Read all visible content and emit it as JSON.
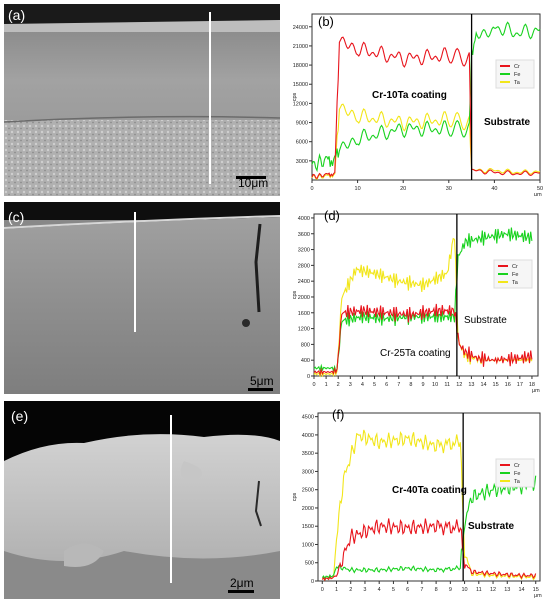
{
  "figure": {
    "panels": [
      {
        "id": "a",
        "label": "(a)",
        "scale_bar": "10μm"
      },
      {
        "id": "b",
        "label": "(b)",
        "coating_label": "Cr-10Ta coating",
        "substrate_label": "Substrate"
      },
      {
        "id": "c",
        "label": "(c)",
        "scale_bar": "5μm"
      },
      {
        "id": "d",
        "label": "(d)",
        "coating_label": "Cr-25Ta coating",
        "substrate_label": "Substrate"
      },
      {
        "id": "e",
        "label": "(e)",
        "scale_bar": "2μm"
      },
      {
        "id": "f",
        "label": "(f)",
        "coating_label": "Cr-40Ta coating",
        "substrate_label": "Substrate"
      }
    ]
  },
  "colors": {
    "Cr": "#e8141c",
    "Fe": "#18d21e",
    "Ta": "#f2e61a",
    "boundary": "#000000"
  },
  "chart_data": [
    {
      "type": "line",
      "panel": "b",
      "ylabel": "cps",
      "xunit": "μm",
      "xlim": [
        0,
        50
      ],
      "ylim": [
        0,
        26000
      ],
      "xticks": [
        0,
        10,
        20,
        30,
        40,
        50
      ],
      "yticks": [
        3000,
        6000,
        9000,
        12000,
        15000,
        18000,
        21000,
        24000
      ],
      "interface_x": 35,
      "legend": [
        "Cr",
        "Fe",
        "Ta"
      ],
      "series": [
        {
          "name": "Cr",
          "x": [
            0,
            3,
            5,
            6,
            10,
            20,
            30,
            34.5,
            35,
            40,
            45,
            50
          ],
          "values": [
            500,
            800,
            1000,
            21500,
            20500,
            19000,
            19500,
            19000,
            1500,
            1200,
            1000,
            1100
          ]
        },
        {
          "name": "Fe",
          "x": [
            0,
            3,
            5,
            6,
            10,
            20,
            30,
            34.5,
            35,
            36,
            40,
            45,
            50
          ],
          "values": [
            2500,
            3000,
            3200,
            4500,
            6500,
            8000,
            8000,
            8000,
            20000,
            23000,
            24000,
            23000,
            23500
          ]
        },
        {
          "name": "Ta",
          "x": [
            0,
            3,
            5,
            6,
            10,
            20,
            30,
            34.5,
            35,
            40,
            45,
            50
          ],
          "values": [
            400,
            600,
            800,
            11000,
            10000,
            9000,
            9500,
            9000,
            1500,
            1500,
            1200,
            1300
          ]
        }
      ]
    },
    {
      "type": "line",
      "panel": "d",
      "ylabel": "cps",
      "xunit": "μm",
      "xlim": [
        0,
        18.5
      ],
      "ylim": [
        0,
        4100
      ],
      "xticks": [
        0,
        1,
        2,
        3,
        4,
        5,
        6,
        7,
        8,
        9,
        10,
        11,
        12,
        13,
        14,
        15,
        16,
        17,
        18
      ],
      "yticks": [
        0,
        400,
        800,
        1200,
        1600,
        2000,
        2400,
        2800,
        3200,
        3600,
        4000
      ],
      "interface_x": 11.8,
      "legend": [
        "Cr",
        "Fe",
        "Ta"
      ],
      "series": [
        {
          "name": "Cr",
          "x": [
            0,
            1.5,
            1.9,
            2.3,
            4,
            6,
            8,
            10,
            11.6,
            12,
            12.5,
            13.5,
            15,
            17,
            18
          ],
          "values": [
            100,
            100,
            150,
            1600,
            1650,
            1600,
            1550,
            1650,
            1650,
            800,
            600,
            450,
            400,
            450,
            500
          ]
        },
        {
          "name": "Fe",
          "x": [
            0,
            1.5,
            1.9,
            2.3,
            4,
            6,
            8,
            10,
            11.6,
            11.9,
            12.5,
            14,
            16,
            18
          ],
          "values": [
            200,
            200,
            150,
            1400,
            1500,
            1450,
            1500,
            1500,
            1500,
            3000,
            3400,
            3500,
            3600,
            3500
          ]
        },
        {
          "name": "Ta",
          "x": [
            0,
            1.5,
            1.9,
            2.3,
            3.5,
            5,
            7,
            9,
            11,
            11.6,
            11.9,
            12.5,
            14,
            16,
            18
          ],
          "values": [
            50,
            50,
            100,
            2000,
            2700,
            2600,
            2400,
            2300,
            2600,
            3600,
            900,
            500,
            400,
            400,
            400
          ]
        }
      ]
    },
    {
      "type": "line",
      "panel": "f",
      "ylabel": "cps",
      "xunit": "μm",
      "xlim": [
        -0.3,
        15.3
      ],
      "ylim": [
        0,
        4600
      ],
      "xticks": [
        0,
        1,
        2,
        3,
        4,
        5,
        6,
        7,
        8,
        9,
        10,
        11,
        12,
        13,
        14,
        15
      ],
      "yticks": [
        0,
        500,
        1000,
        1500,
        2000,
        2500,
        3000,
        3500,
        4000,
        4500
      ],
      "interface_x": 9.9,
      "legend": [
        "Cr",
        "Fe",
        "Ta"
      ],
      "series": [
        {
          "name": "Cr",
          "x": [
            0,
            0.8,
            1,
            1.5,
            2,
            4,
            6,
            8,
            9.7,
            10,
            10.5,
            12,
            14,
            15
          ],
          "values": [
            50,
            100,
            150,
            700,
            1200,
            1500,
            1450,
            1500,
            1450,
            500,
            250,
            200,
            150,
            150
          ]
        },
        {
          "name": "Fe",
          "x": [
            0,
            0.8,
            1,
            2,
            4,
            6,
            8,
            9.7,
            10,
            10.5,
            12,
            14,
            15
          ],
          "values": [
            100,
            150,
            400,
            300,
            300,
            350,
            300,
            350,
            1600,
            2300,
            2500,
            2600,
            2700
          ]
        },
        {
          "name": "Ta",
          "x": [
            0,
            0.8,
            1,
            1.5,
            2.5,
            4,
            6,
            8,
            9.7,
            10,
            10.5,
            12,
            14,
            15
          ],
          "values": [
            50,
            100,
            1200,
            2800,
            4000,
            3800,
            3900,
            3700,
            3800,
            800,
            200,
            150,
            120,
            100
          ]
        }
      ]
    }
  ]
}
